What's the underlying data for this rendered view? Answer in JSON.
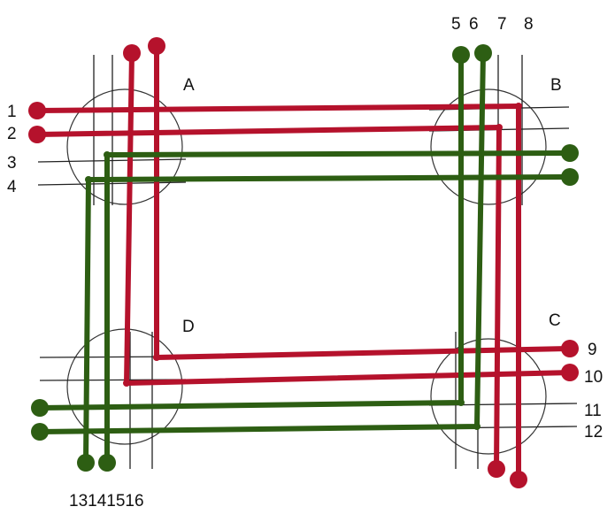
{
  "colors": {
    "red": "#b5122c",
    "green": "#2d5e13",
    "line": "#222222"
  },
  "node_labels": {
    "A": "A",
    "B": "B",
    "C": "C",
    "D": "D"
  },
  "port_labels": {
    "p1": "1",
    "p2": "2",
    "p3": "3",
    "p4": "4",
    "p5": "5",
    "p6": "6",
    "p7": "7",
    "p8": "8",
    "p9": "9",
    "p10": "10",
    "p11": "11",
    "p12": "12",
    "p13to16": "13141516"
  }
}
